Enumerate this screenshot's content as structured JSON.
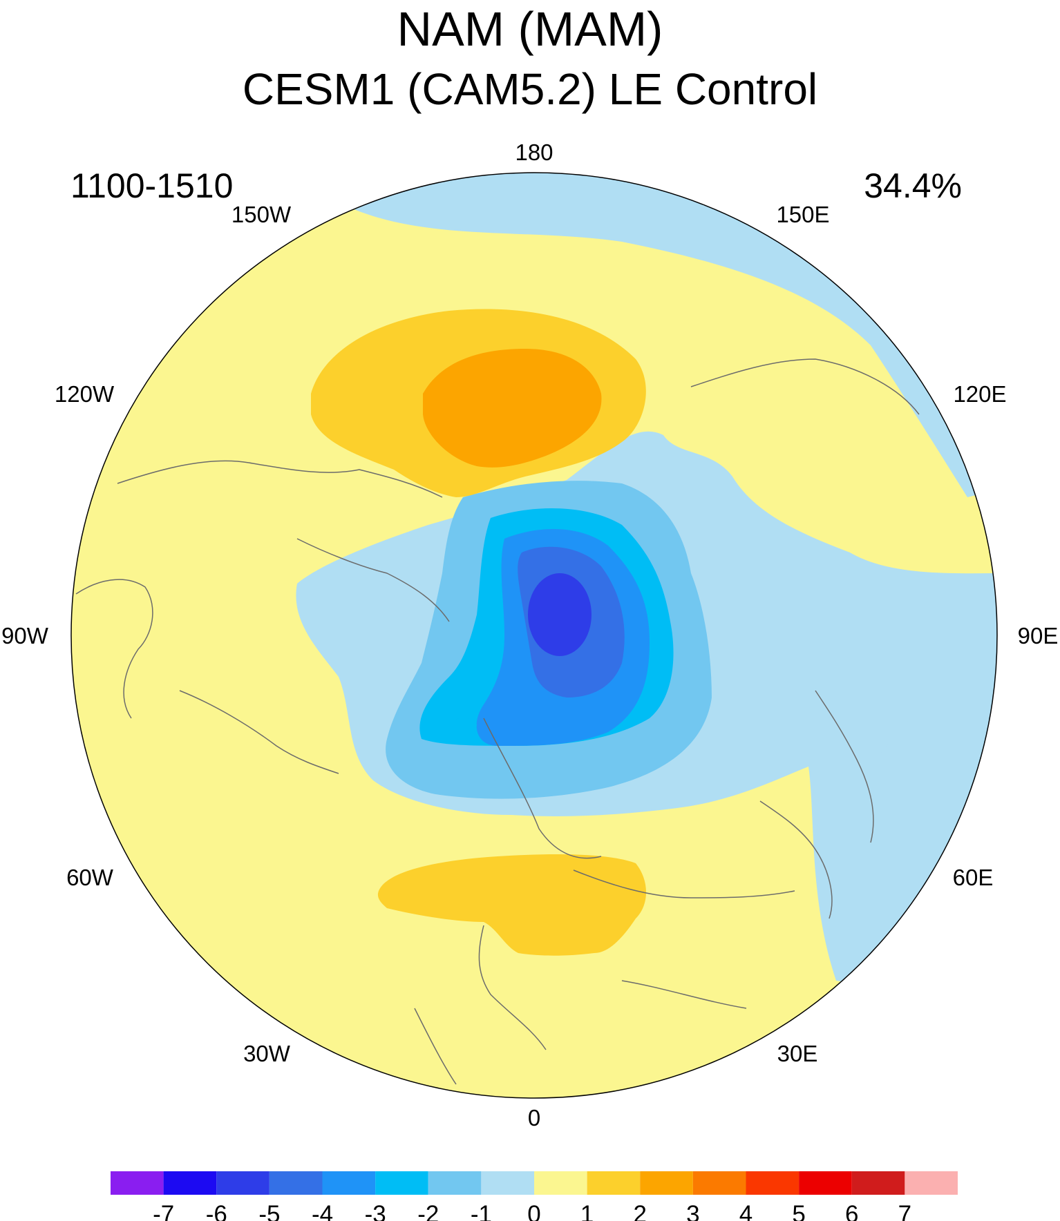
{
  "title": "NAM (MAM)",
  "subtitle": "CESM1 (CAM5.2) LE Control",
  "left_label": "1100-1510",
  "right_label": "34.4%",
  "longitude_labels": [
    "180",
    "150E",
    "120E",
    "90E",
    "60E",
    "30E",
    "0",
    "30W",
    "60W",
    "90W",
    "120W",
    "150W"
  ],
  "colorbar": {
    "ticks": [
      "-7",
      "-6",
      "-5",
      "-4",
      "-3",
      "-2",
      "-1",
      "0",
      "1",
      "2",
      "3",
      "4",
      "5",
      "6",
      "7"
    ],
    "colors": [
      "#8a1ef0",
      "#1c0af2",
      "#2e3de8",
      "#3470e6",
      "#1f93f7",
      "#00bdf5",
      "#72c7f0",
      "#b0def3",
      "#fbf690",
      "#fcd02c",
      "#fca500",
      "#fb7a00",
      "#fa3700",
      "#ec0000",
      "#d01c1c",
      "#fbb0b0"
    ]
  },
  "map": {
    "projection": "north polar stereographic",
    "colors": {
      "ocean_outline": "#000000",
      "coastline": "#6b6b6b"
    }
  }
}
